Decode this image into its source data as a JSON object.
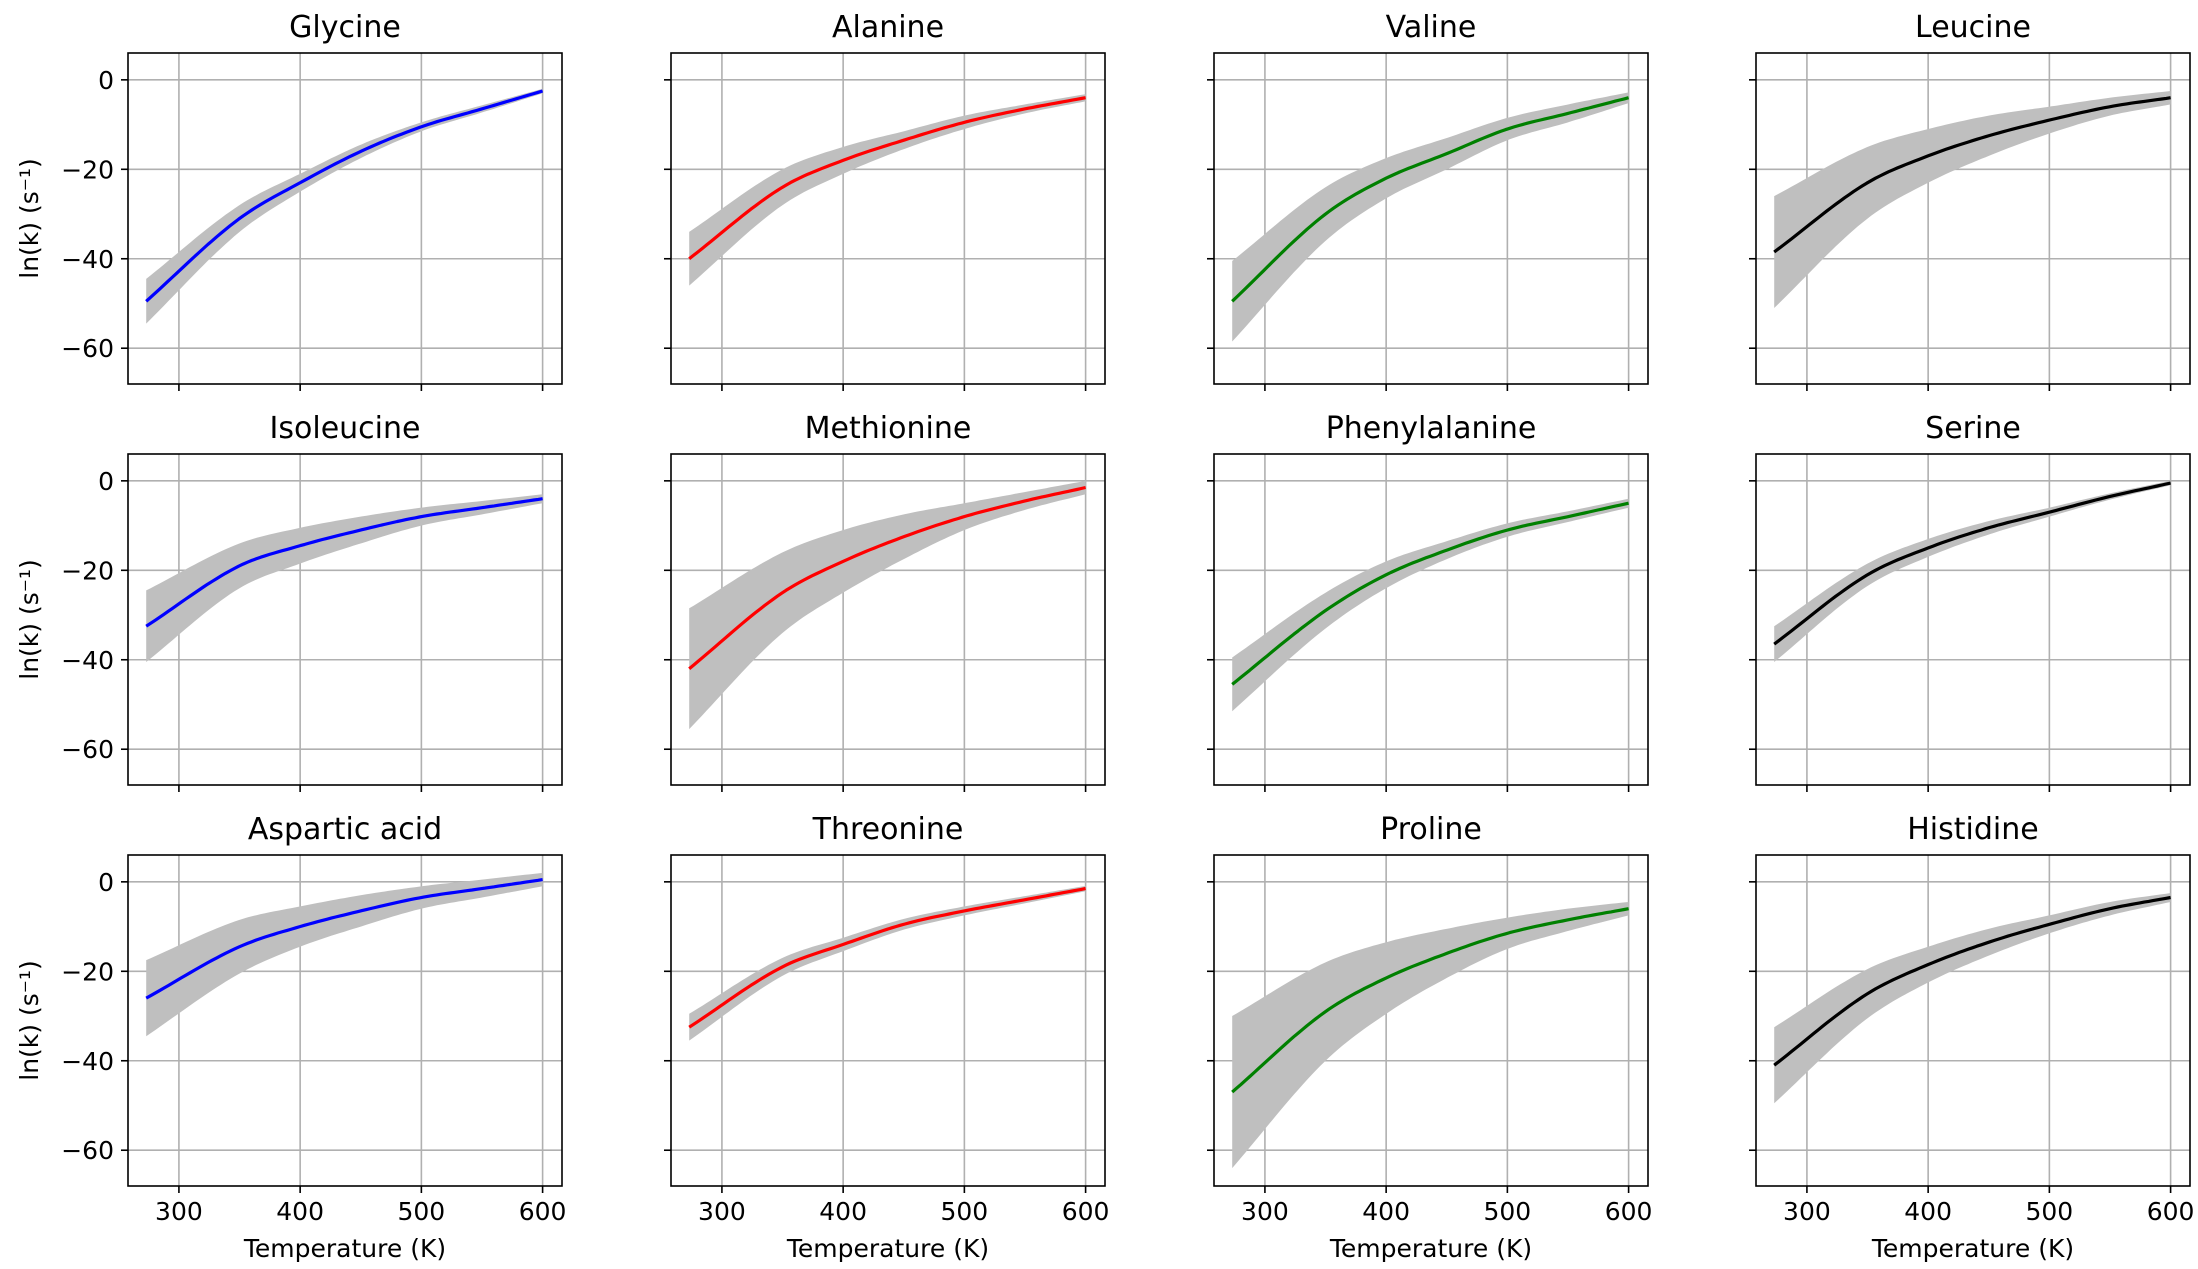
{
  "chart_data": {
    "type": "line",
    "layout": {
      "rows": 3,
      "cols": 4,
      "sharex": true,
      "sharey": true
    },
    "xlabel": "Temperature (K)",
    "ylabel": "ln(k) (s⁻¹)",
    "xlim": [
      258,
      616
    ],
    "ylim": [
      -68,
      6
    ],
    "xticks": [
      300,
      400,
      500,
      600
    ],
    "yticks": [
      0,
      -20,
      -40,
      -60
    ],
    "ytick_labels": [
      "0",
      "−20",
      "−40",
      "−60"
    ],
    "grid": true,
    "colors": {
      "band": "#bfbfbf",
      "grid": "#b0b0b0"
    },
    "panels": [
      {
        "title": "Glycine",
        "color": "#0000ff",
        "T": [
          273,
          350,
          400,
          450,
          500,
          550,
          600
        ],
        "lnk": [
          -49.5,
          -31,
          -23,
          -16,
          -10.5,
          -6.5,
          -2.5
        ],
        "band_half": [
          5,
          3,
          2,
          1.5,
          1,
          0.8,
          0.5
        ]
      },
      {
        "title": "Alanine",
        "color": "#ff0000",
        "T": [
          273,
          350,
          400,
          450,
          500,
          550,
          600
        ],
        "lnk": [
          -40,
          -24,
          -18,
          -13.5,
          -9.5,
          -6.5,
          -4
        ],
        "band_half": [
          6,
          4,
          3,
          2,
          1.5,
          1,
          0.8
        ]
      },
      {
        "title": "Valine",
        "color": "#008000",
        "T": [
          273,
          350,
          400,
          450,
          500,
          550,
          600
        ],
        "lnk": [
          -49.5,
          -30,
          -22,
          -16.5,
          -11,
          -7.5,
          -4
        ],
        "band_half": [
          9,
          6,
          4.5,
          3.5,
          2.5,
          2,
          1.2
        ]
      },
      {
        "title": "Leucine",
        "color": "#000000",
        "T": [
          273,
          350,
          400,
          450,
          500,
          550,
          600
        ],
        "lnk": [
          -38.5,
          -23,
          -17,
          -12.5,
          -9,
          -6,
          -4
        ],
        "band_half": [
          12.5,
          8,
          6,
          4.5,
          3,
          2,
          1.5
        ]
      },
      {
        "title": "Isoleucine",
        "color": "#0000ff",
        "T": [
          273,
          350,
          400,
          450,
          500,
          550,
          600
        ],
        "lnk": [
          -32.5,
          -19,
          -14.5,
          -11,
          -8,
          -6,
          -4
        ],
        "band_half": [
          8,
          5,
          4,
          3,
          2,
          1.5,
          1
        ]
      },
      {
        "title": "Methionine",
        "color": "#ff0000",
        "T": [
          273,
          350,
          400,
          450,
          500,
          550,
          600
        ],
        "lnk": [
          -42,
          -25,
          -18,
          -12.5,
          -8,
          -4.5,
          -1.5
        ],
        "band_half": [
          13.5,
          9,
          7,
          5,
          3,
          2,
          1.5
        ]
      },
      {
        "title": "Phenylalanine",
        "color": "#008000",
        "T": [
          273,
          350,
          400,
          450,
          500,
          550,
          600
        ],
        "lnk": [
          -45.5,
          -29,
          -21,
          -15.5,
          -11,
          -8,
          -5
        ],
        "band_half": [
          6,
          4,
          3,
          2,
          1.5,
          1.2,
          1
        ]
      },
      {
        "title": "Serine",
        "color": "#000000",
        "T": [
          273,
          350,
          400,
          450,
          500,
          550,
          600
        ],
        "lnk": [
          -36.5,
          -21,
          -15,
          -10.5,
          -7,
          -3.5,
          -0.5
        ],
        "band_half": [
          4,
          2.5,
          2,
          1.5,
          1,
          0.7,
          0.5
        ]
      },
      {
        "title": "Aspartic acid",
        "color": "#0000ff",
        "T": [
          273,
          350,
          400,
          450,
          500,
          550,
          600
        ],
        "lnk": [
          -26,
          -14.5,
          -10,
          -6.5,
          -3.5,
          -1.5,
          0.5
        ],
        "band_half": [
          8.5,
          6,
          4.5,
          3.5,
          2.5,
          2,
          1.5
        ]
      },
      {
        "title": "Threonine",
        "color": "#ff0000",
        "T": [
          273,
          350,
          400,
          450,
          500,
          550,
          600
        ],
        "lnk": [
          -32.5,
          -19,
          -14,
          -9.5,
          -6.5,
          -4,
          -1.5
        ],
        "band_half": [
          3,
          2,
          1.5,
          1.2,
          1,
          0.8,
          0.6
        ]
      },
      {
        "title": "Proline",
        "color": "#008000",
        "T": [
          273,
          350,
          400,
          450,
          500,
          550,
          600
        ],
        "lnk": [
          -47,
          -29,
          -21.5,
          -16,
          -11.5,
          -8.5,
          -6
        ],
        "band_half": [
          17,
          11,
          8,
          5.5,
          3.5,
          2.5,
          1.5
        ]
      },
      {
        "title": "Histidine",
        "color": "#000000",
        "T": [
          273,
          350,
          400,
          450,
          500,
          550,
          600
        ],
        "lnk": [
          -41,
          -25,
          -18.5,
          -13.5,
          -9.5,
          -6,
          -3.5
        ],
        "band_half": [
          8.5,
          5.5,
          4,
          3,
          2,
          1.5,
          1
        ]
      }
    ]
  }
}
